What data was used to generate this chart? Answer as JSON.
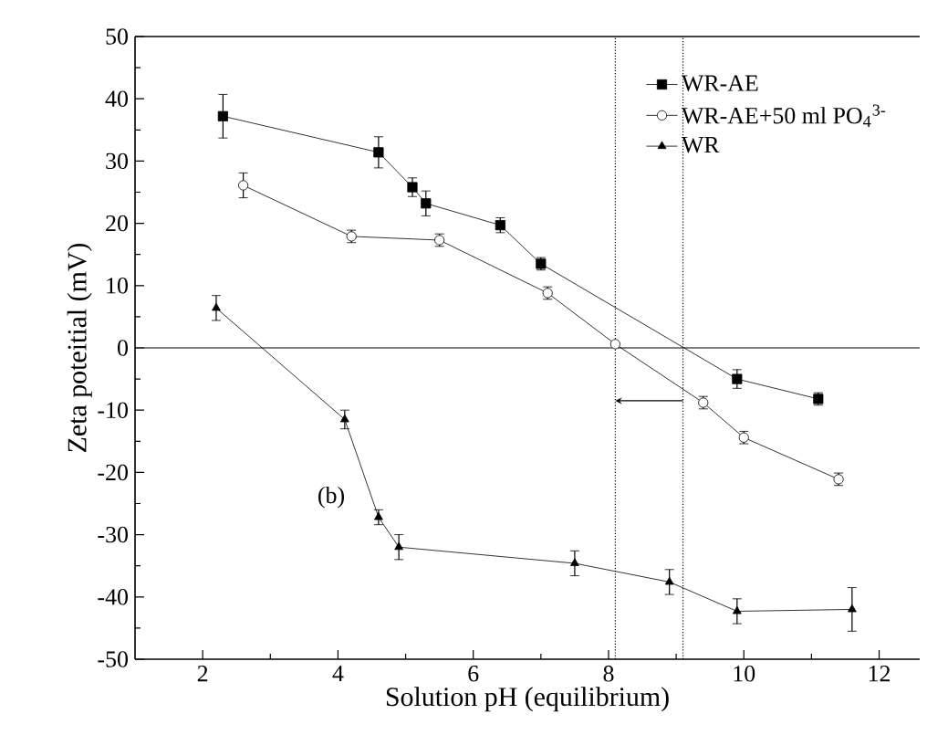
{
  "chart_data": {
    "type": "line",
    "xlabel": "Solution pH (equilibrium)",
    "ylabel": "Zeta poteitial (mV)",
    "xlim": [
      1,
      12.6
    ],
    "ylim": [
      -50,
      50
    ],
    "xticks": [
      2,
      4,
      6,
      8,
      10,
      12
    ],
    "yticks": [
      -50,
      -40,
      -30,
      -20,
      -10,
      0,
      10,
      20,
      30,
      40,
      50
    ],
    "legend": "top right",
    "grid": false,
    "line_style": "solid",
    "series": [
      {
        "name": "WR-AE",
        "color": "#000000",
        "marker": "square",
        "x": [
          2.3,
          4.6,
          5.1,
          5.3,
          6.4,
          7.0,
          9.9,
          11.1
        ],
        "values": [
          37.2,
          31.4,
          25.8,
          23.2,
          19.7,
          13.5,
          -5,
          -8.2
        ],
        "errors": [
          3.5,
          2.5,
          1.5,
          2,
          1.2,
          1,
          1.5,
          1
        ]
      },
      {
        "name": "WR-AE+50 ml PO$_{4}$$^{3-}$",
        "color": "#000000",
        "marker": "circle",
        "x": [
          2.6,
          4.2,
          5.5,
          7.1,
          8.1,
          9.4,
          10.0,
          11.4
        ],
        "values": [
          26.1,
          17.9,
          17.3,
          8.8,
          0.6,
          -8.8,
          -14.4,
          -21.1
        ],
        "errors": [
          2,
          1,
          1,
          1,
          null,
          1,
          1,
          1
        ]
      },
      {
        "name": "WR",
        "color": "#000000",
        "marker": "triangle",
        "x": [
          2.2,
          4.1,
          4.6,
          4.9,
          7.5,
          8.9,
          9.9,
          11.6
        ],
        "values": [
          6.4,
          -11.5,
          -27.2,
          -32,
          -34.6,
          -37.6,
          -42.3,
          -42
        ],
        "errors": [
          2,
          1.5,
          1.2,
          2,
          2,
          2,
          2,
          3.5
        ]
      }
    ],
    "ref_lines": [
      {
        "axis": "y",
        "value": 0,
        "color": "#000000",
        "line_style": "solid"
      },
      {
        "axis": "x",
        "value": 8.1,
        "color": "#000000",
        "line_style": "dotted"
      },
      {
        "axis": "x",
        "value": 9.1,
        "color": "#000000",
        "line_style": "dotted"
      }
    ],
    "annotations": [
      "(b)"
    ]
  }
}
